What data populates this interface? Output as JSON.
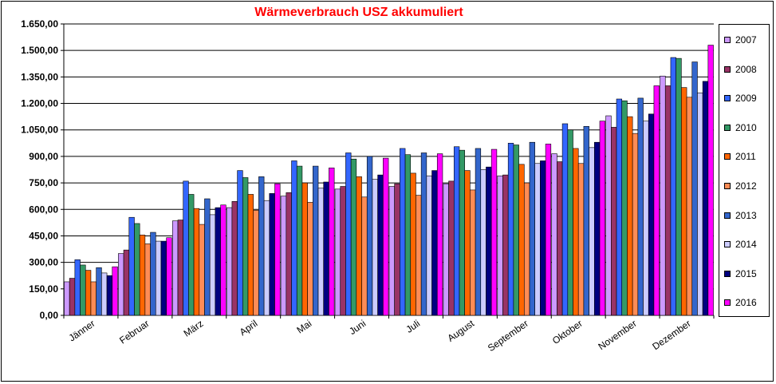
{
  "chart_data": {
    "type": "bar",
    "title": "Wärmeverbrauch USZ akkumuliert",
    "xlabel": "",
    "ylabel": "",
    "ylim": [
      0,
      1650
    ],
    "yticks": [
      "0,00",
      "150,00",
      "300,00",
      "450,00",
      "600,00",
      "750,00",
      "900,00",
      "1.050,00",
      "1.200,00",
      "1.350,00",
      "1.500,00",
      "1.650,00"
    ],
    "ytick_values": [
      0,
      150,
      300,
      450,
      600,
      750,
      900,
      1050,
      1200,
      1350,
      1500,
      1650
    ],
    "grid": true,
    "legend_position": "right",
    "categories": [
      "Jänner",
      "Februar",
      "März",
      "April",
      "Mai",
      "Juni",
      "Juli",
      "August",
      "September",
      "Oktober",
      "November",
      "Dezember"
    ],
    "series": [
      {
        "name": "2007",
        "color": "#cc99ff",
        "values": [
          190,
          350,
          535,
          610,
          675,
          715,
          730,
          745,
          790,
          915,
          1130,
          1355
        ]
      },
      {
        "name": "2008",
        "color": "#993366",
        "values": [
          210,
          370,
          540,
          645,
          695,
          730,
          745,
          760,
          795,
          870,
          1065,
          1300
        ]
      },
      {
        "name": "2009",
        "color": "#3366ff",
        "values": [
          315,
          555,
          760,
          820,
          875,
          920,
          945,
          955,
          975,
          1085,
          1225,
          1460
        ]
      },
      {
        "name": "2010",
        "color": "#339966",
        "values": [
          285,
          520,
          685,
          780,
          845,
          885,
          910,
          935,
          965,
          1050,
          1215,
          1455
        ]
      },
      {
        "name": "2011",
        "color": "#ff6600",
        "values": [
          255,
          455,
          605,
          685,
          750,
          785,
          805,
          820,
          855,
          945,
          1125,
          1290
        ]
      },
      {
        "name": "2012",
        "color": "#ff8c55",
        "values": [
          190,
          405,
          515,
          595,
          640,
          670,
          680,
          710,
          750,
          860,
          1030,
          1235
        ]
      },
      {
        "name": "2013",
        "color": "#3366cc",
        "values": [
          270,
          470,
          660,
          785,
          845,
          900,
          920,
          945,
          980,
          1070,
          1230,
          1435
        ]
      },
      {
        "name": "2014",
        "color": "#ccccff",
        "values": [
          240,
          420,
          570,
          650,
          720,
          770,
          790,
          825,
          860,
          950,
          1100,
          1260
        ]
      },
      {
        "name": "2015",
        "color": "#000080",
        "values": [
          225,
          420,
          610,
          690,
          755,
          795,
          820,
          840,
          875,
          980,
          1140,
          1325
        ]
      },
      {
        "name": "2016",
        "color": "#ff00ff",
        "values": [
          275,
          440,
          625,
          745,
          835,
          890,
          915,
          940,
          970,
          1100,
          1300,
          1530
        ]
      }
    ]
  }
}
